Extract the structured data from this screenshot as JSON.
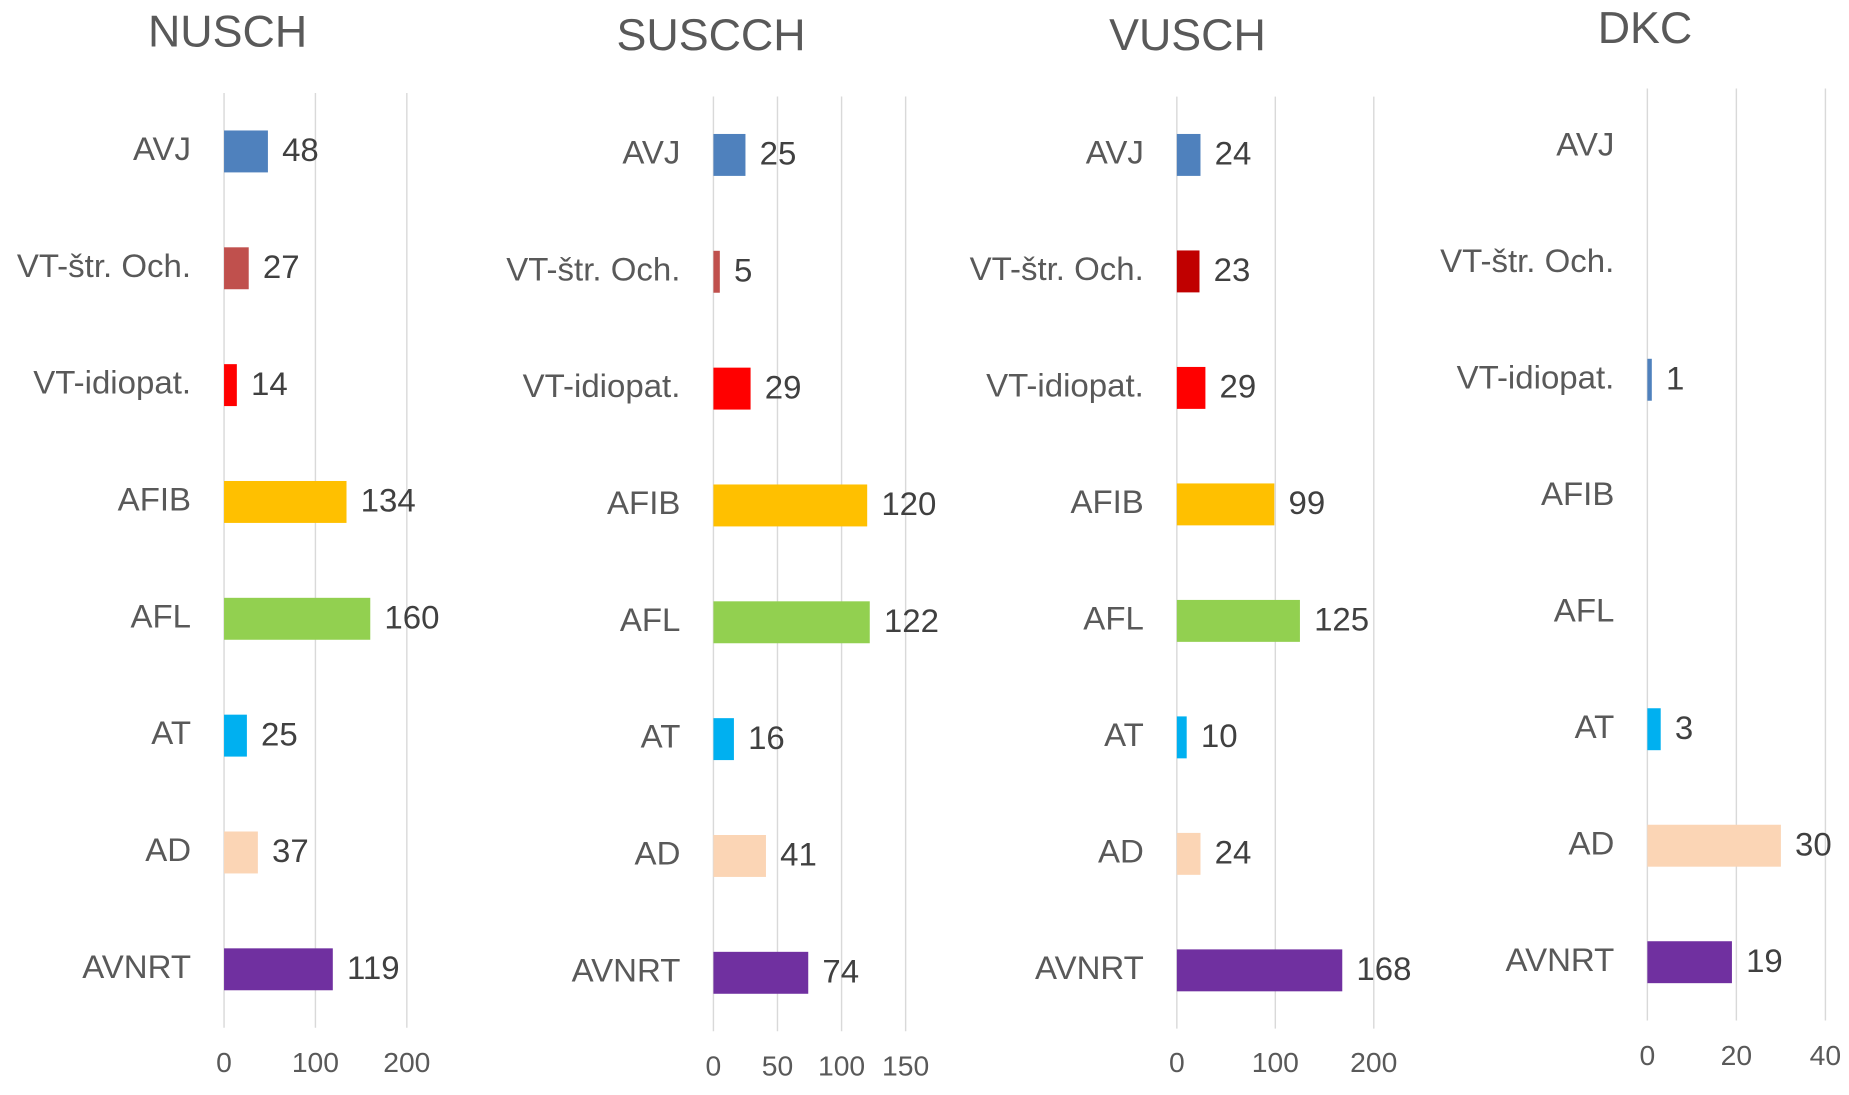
{
  "chart_data": [
    {
      "type": "bar",
      "orientation": "horizontal",
      "title": "NUSCH",
      "categories": [
        "AVJ",
        "VT-štr. Och.",
        "VT-idiopat.",
        "AFIB",
        "AFL",
        "AT",
        "AD",
        "AVNRT"
      ],
      "values": [
        48,
        27,
        14,
        134,
        160,
        25,
        37,
        119
      ],
      "colors": [
        "#4f81bd",
        "#c0504d",
        "#ff0000",
        "#ffc000",
        "#92d050",
        "#00b0f0",
        "#fbd5b5",
        "#7030a0"
      ],
      "xlim": [
        0,
        200
      ],
      "xticks": [
        0,
        100,
        200
      ],
      "grid": true
    },
    {
      "type": "bar",
      "orientation": "horizontal",
      "title": "SUSCCH",
      "categories": [
        "AVJ",
        "VT-štr. Och.",
        "VT-idiopat.",
        "AFIB",
        "AFL",
        "AT",
        "AD",
        "AVNRT"
      ],
      "values": [
        25,
        5,
        29,
        120,
        122,
        16,
        41,
        74
      ],
      "colors": [
        "#4f81bd",
        "#c0504d",
        "#ff0000",
        "#ffc000",
        "#92d050",
        "#00b0f0",
        "#fbd5b5",
        "#7030a0"
      ],
      "xlim": [
        0,
        150
      ],
      "xticks": [
        0,
        50,
        100,
        150
      ],
      "grid": true
    },
    {
      "type": "bar",
      "orientation": "horizontal",
      "title": "VUSCH",
      "categories": [
        "AVJ",
        "VT-štr. Och.",
        "VT-idiopat.",
        "AFIB",
        "AFL",
        "AT",
        "AD",
        "AVNRT"
      ],
      "values": [
        24,
        23,
        29,
        99,
        125,
        10,
        24,
        168
      ],
      "colors": [
        "#4f81bd",
        "#c00000",
        "#ff0000",
        "#ffc000",
        "#92d050",
        "#00b0f0",
        "#fbd5b5",
        "#7030a0"
      ],
      "xlim": [
        0,
        200
      ],
      "xticks": [
        0,
        100,
        200
      ],
      "grid": true
    },
    {
      "type": "bar",
      "orientation": "horizontal",
      "title": "DKC",
      "categories": [
        "AVJ",
        "VT-štr. Och.",
        "VT-idiopat.",
        "AFIB",
        "AFL",
        "AT",
        "AD",
        "AVNRT"
      ],
      "values": [
        null,
        null,
        1,
        null,
        null,
        3,
        30,
        19
      ],
      "colors": [
        "#4f81bd",
        "#c0504d",
        "#4f81bd",
        "#ffc000",
        "#92d050",
        "#00b0f0",
        "#fbd5b5",
        "#7030a0"
      ],
      "xlim": [
        0,
        40
      ],
      "xticks": [
        0,
        20,
        40
      ],
      "grid": true
    }
  ]
}
